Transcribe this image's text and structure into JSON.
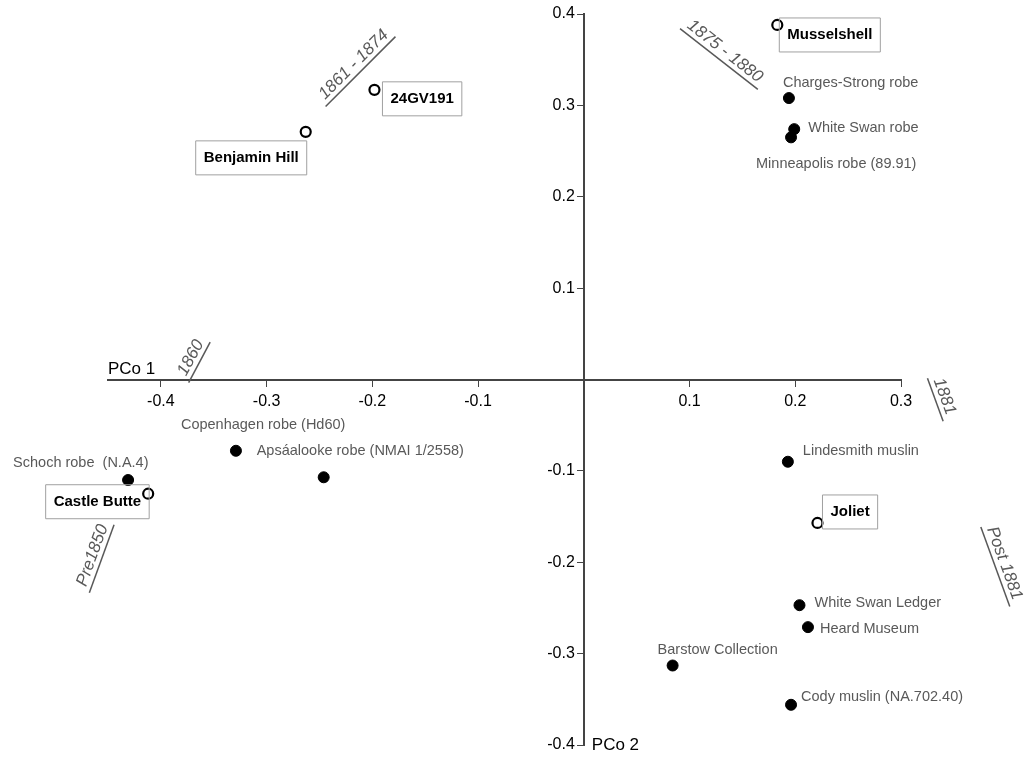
{
  "chart_data": {
    "type": "scatter",
    "xlabel": "PCo 1",
    "ylabel": "PCo 2",
    "xlim": [
      -0.45,
      0.3
    ],
    "ylim": [
      -0.4,
      0.4
    ],
    "xticks": [
      -0.4,
      -0.3,
      -0.2,
      -0.1,
      0.1,
      0.2,
      0.3
    ],
    "yticks": [
      0.4,
      0.3,
      0.2,
      0.1,
      -0.1,
      -0.2,
      -0.3,
      -0.4
    ],
    "grid": false,
    "legend": false,
    "marker": "circle",
    "series": [
      {
        "color": "#000000",
        "x": [
          0.183,
          -0.198,
          -0.263,
          -0.412,
          0.221
        ],
        "values": [
          0.388,
          0.317,
          0.271,
          -0.125,
          -0.157
        ]
      },
      {
        "color": "#000000",
        "x": [
          0.194,
          0.199,
          0.196,
          -0.329,
          -0.246,
          -0.431,
          0.193,
          0.204,
          0.212,
          0.084,
          0.196
        ],
        "values": [
          0.308,
          0.274,
          0.265,
          -0.078,
          -0.107,
          -0.11,
          -0.09,
          -0.247,
          -0.271,
          -0.313,
          -0.356
        ]
      }
    ],
    "annotations": [
      {
        "text": "Musselshell",
        "x": 0.183,
        "y": 0.388
      },
      {
        "text": "24GV191",
        "x": -0.198,
        "y": 0.317
      },
      {
        "text": "Benjamin Hill",
        "x": -0.263,
        "y": 0.271
      },
      {
        "text": "Castle Butte",
        "x": -0.412,
        "y": -0.125
      },
      {
        "text": "Joliet",
        "x": 0.221,
        "y": -0.157
      },
      {
        "text": "Charges-Strong robe",
        "x": 0.194,
        "y": 0.308
      },
      {
        "text": "White Swan robe",
        "x": 0.199,
        "y": 0.274
      },
      {
        "text": "Minneapolis robe (89.91)",
        "x": 0.196,
        "y": 0.265
      },
      {
        "text": "Copenhagen robe (Hd60)",
        "x": -0.329,
        "y": -0.078
      },
      {
        "text": "Apsáalooke robe (NMAI 1/2558)",
        "x": -0.246,
        "y": -0.107
      },
      {
        "text": "Schoch robe  (N.A.4)",
        "x": -0.431,
        "y": -0.11
      },
      {
        "text": "Lindesmith muslin",
        "x": 0.193,
        "y": -0.09
      },
      {
        "text": "White Swan Ledger",
        "x": 0.204,
        "y": -0.247
      },
      {
        "text": "Heard Museum",
        "x": 0.212,
        "y": -0.271
      },
      {
        "text": "Barstow Collection",
        "x": 0.084,
        "y": -0.313
      },
      {
        "text": "Cody muslin (NA.702.40)",
        "x": 0.196,
        "y": -0.356
      },
      "1861 - 1874",
      "1875 - 1880",
      "1860",
      "Pre1850",
      "1881",
      "Post 1881"
    ]
  }
}
